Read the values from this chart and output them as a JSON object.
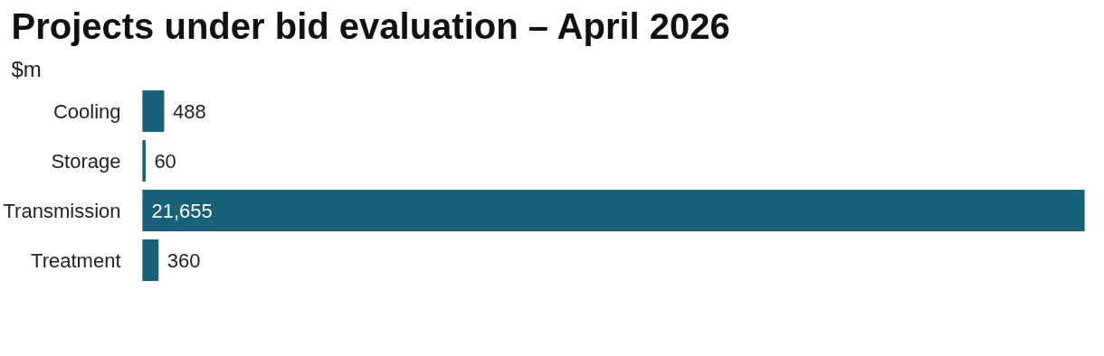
{
  "chart_data": {
    "type": "bar",
    "orientation": "horizontal",
    "title": "Projects under bid evaluation – April 2026",
    "subtitle": "$m",
    "categories": [
      "Cooling",
      "Storage",
      "Transmission",
      "Treatment"
    ],
    "values": [
      488,
      60,
      21655,
      360
    ],
    "value_labels": [
      "488",
      "60",
      "21,655",
      "360"
    ],
    "color": "#17607a"
  }
}
